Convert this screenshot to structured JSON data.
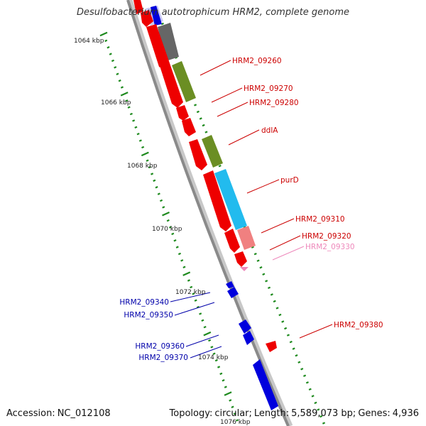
{
  "title": "Desulfobacterium autotrophicum HRM2, complete genome",
  "accession": {
    "label": "Accession:",
    "value": "NC_012108"
  },
  "topology": {
    "label": "Topology:",
    "value": "circular;",
    "length_label": "Length:",
    "length_value": "5,589,073 bp;",
    "genes_label": "Genes:",
    "genes_value": "4,936"
  },
  "colors": {
    "backbone": "#8a8a8a",
    "tick": "#1e8a1e",
    "forward_gene": "#ee0000",
    "reverse_gene": "#0000dd",
    "label_red": "#cc0000",
    "label_blue": "#0000aa",
    "label_pink": "#ee88bb",
    "track_gray": "#666666",
    "track_olive": "#6b8e23",
    "track_cyan": "#22bbee",
    "track_salmon": "#f08080",
    "track_lavender": "#c8c8f5"
  },
  "scale_labels": [
    "1064 kbp",
    "1066 kbp",
    "1068 kbp",
    "1070 kbp",
    "1072 kbp",
    "1074 kbp",
    "1076 kbp"
  ],
  "gene_labels": [
    {
      "text": "HRM2_09260",
      "strand": "forward"
    },
    {
      "text": "HRM2_09270",
      "strand": "forward"
    },
    {
      "text": "HRM2_09280",
      "strand": "forward"
    },
    {
      "text": "ddlA",
      "strand": "forward"
    },
    {
      "text": "purD",
      "strand": "forward"
    },
    {
      "text": "HRM2_09310",
      "strand": "forward"
    },
    {
      "text": "HRM2_09320",
      "strand": "forward"
    },
    {
      "text": "HRM2_09330",
      "strand": "forward-pink"
    },
    {
      "text": "HRM2_09380",
      "strand": "forward"
    },
    {
      "text": "HRM2_09340",
      "strand": "reverse"
    },
    {
      "text": "HRM2_09350",
      "strand": "reverse"
    },
    {
      "text": "HRM2_09360",
      "strand": "reverse"
    },
    {
      "text": "HRM2_09370",
      "strand": "reverse"
    }
  ]
}
